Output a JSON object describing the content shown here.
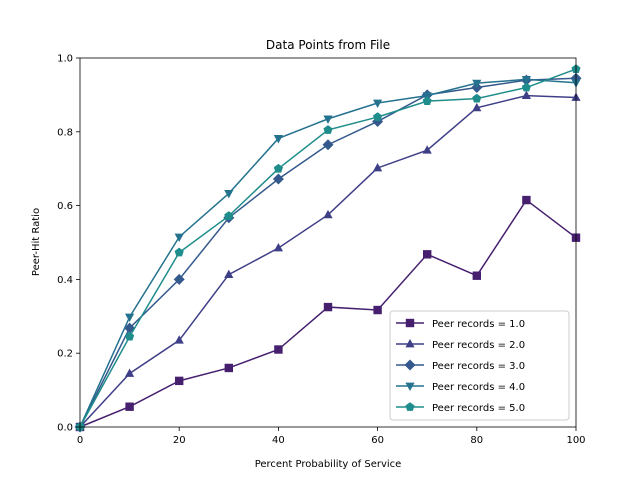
{
  "chart_data": {
    "type": "line",
    "title": "Data Points from File",
    "xlabel": "Percent Probability of Service",
    "ylabel": "Peer-Hit Ratio",
    "xlim": [
      0,
      100
    ],
    "ylim": [
      0.0,
      1.0
    ],
    "xticks": [
      "0",
      "20",
      "40",
      "60",
      "80",
      "100"
    ],
    "yticks": [
      "0.0",
      "0.2",
      "0.4",
      "0.6",
      "0.8",
      "1.0"
    ],
    "grid": false,
    "legend_position": "lower-right",
    "x": [
      0,
      10,
      20,
      30,
      40,
      50,
      60,
      70,
      80,
      90,
      100
    ],
    "series": [
      {
        "name": "Peer records = 1.0",
        "color": "#46206f",
        "marker": "square",
        "values": [
          0.0,
          0.055,
          0.125,
          0.16,
          0.21,
          0.325,
          0.317,
          0.468,
          0.41,
          0.615,
          0.513
        ]
      },
      {
        "name": "Peer records = 2.0",
        "color": "#3f3f88",
        "marker": "triangle-up",
        "values": [
          0.0,
          0.145,
          0.235,
          0.413,
          0.485,
          0.575,
          0.702,
          0.75,
          0.865,
          0.898,
          0.893
        ]
      },
      {
        "name": "Peer records = 3.0",
        "color": "#34598c",
        "marker": "diamond",
        "values": [
          0.0,
          0.268,
          0.4,
          0.567,
          0.672,
          0.765,
          0.828,
          0.9,
          0.92,
          0.94,
          0.945
        ]
      },
      {
        "name": "Peer records = 4.0",
        "color": "#25728f",
        "marker": "triangle-down",
        "values": [
          0.0,
          0.298,
          0.515,
          0.633,
          0.782,
          0.835,
          0.878,
          0.898,
          0.932,
          0.942,
          0.933
        ]
      },
      {
        "name": "Peer records = 5.0",
        "color": "#1f8d8b",
        "marker": "pentagon",
        "values": [
          0.0,
          0.245,
          0.473,
          0.572,
          0.7,
          0.805,
          0.84,
          0.883,
          0.89,
          0.92,
          0.97
        ]
      }
    ]
  }
}
